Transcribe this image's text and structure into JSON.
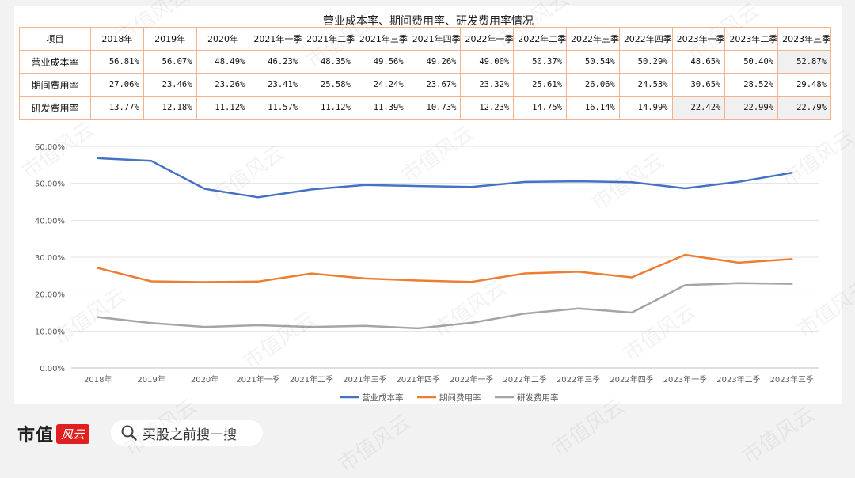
{
  "watermark": "市值风云",
  "footer": {
    "logo_text": "市值",
    "logo_stamp": "风云",
    "search_text": "买股之前搜一搜"
  },
  "table": {
    "title": "营业成本率、期间费用率、研发费用率情况",
    "header_label": "项目",
    "periods": [
      "2018年",
      "2019年",
      "2020年",
      "2021年一季",
      "2021年二季",
      "2021年三季",
      "2021年四季",
      "2022年一季",
      "2022年二季",
      "2022年三季",
      "2022年四季",
      "2023年一季",
      "2023年二季",
      "2023年三季"
    ],
    "rows": [
      {
        "name": "营业成本率",
        "values": [
          "56.81%",
          "56.07%",
          "48.49%",
          "46.23%",
          "48.35%",
          "49.56%",
          "49.26%",
          "49.00%",
          "50.37%",
          "50.54%",
          "50.29%",
          "48.65%",
          "50.40%",
          "52.87%"
        ]
      },
      {
        "name": "期间费用率",
        "values": [
          "27.06%",
          "23.46%",
          "23.26%",
          "23.41%",
          "25.58%",
          "24.24%",
          "23.67%",
          "23.32%",
          "25.61%",
          "26.06%",
          "24.53%",
          "30.65%",
          "28.52%",
          "29.48%"
        ]
      },
      {
        "name": "研发费用率",
        "values": [
          "13.77%",
          "12.18%",
          "11.12%",
          "11.57%",
          "11.12%",
          "11.39%",
          "10.73%",
          "12.23%",
          "14.75%",
          "16.14%",
          "14.99%",
          "22.42%",
          "22.99%",
          "22.79%"
        ]
      }
    ]
  },
  "chart_data": {
    "type": "line",
    "title": "",
    "xlabel": "",
    "ylabel": "",
    "categories": [
      "2018年",
      "2019年",
      "2020年",
      "2021年一季",
      "2021年二季",
      "2021年三季",
      "2021年四季",
      "2022年一季",
      "2022年二季",
      "2022年三季",
      "2022年四季",
      "2023年一季",
      "2023年二季",
      "2023年三季"
    ],
    "ylim": [
      0,
      60
    ],
    "yticks": [
      "0.00%",
      "10.00%",
      "20.00%",
      "30.00%",
      "40.00%",
      "50.00%",
      "60.00%"
    ],
    "grid": true,
    "legend_position": "bottom",
    "series": [
      {
        "name": "营业成本率",
        "color": "#4472c4",
        "values": [
          56.81,
          56.07,
          48.49,
          46.23,
          48.35,
          49.56,
          49.26,
          49.0,
          50.37,
          50.54,
          50.29,
          48.65,
          50.4,
          52.87
        ]
      },
      {
        "name": "期间费用率",
        "color": "#ed7d31",
        "values": [
          27.06,
          23.46,
          23.26,
          23.41,
          25.58,
          24.24,
          23.67,
          23.32,
          25.61,
          26.06,
          24.53,
          30.65,
          28.52,
          29.48
        ]
      },
      {
        "name": "研发费用率",
        "color": "#a5a5a5",
        "values": [
          13.77,
          12.18,
          11.12,
          11.57,
          11.12,
          11.39,
          10.73,
          12.23,
          14.75,
          16.14,
          14.99,
          22.42,
          22.99,
          22.79
        ]
      }
    ]
  }
}
